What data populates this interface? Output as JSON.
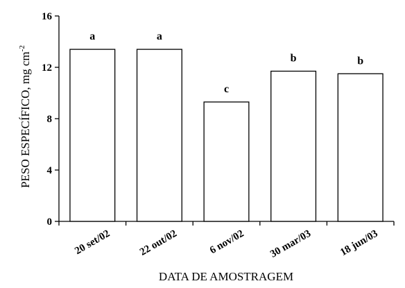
{
  "chart_data": {
    "type": "bar",
    "categories": [
      "20 set/02",
      "22 out/02",
      "6 nov/02",
      "30 mar/03",
      "18 jun/03"
    ],
    "values": [
      13.4,
      13.4,
      9.3,
      11.7,
      11.5
    ],
    "significance_letters": [
      "a",
      "a",
      "c",
      "b",
      "b"
    ],
    "title": "",
    "xlabel": "DATA DE AMOSTRAGEM",
    "ylabel": "PESO ESPECÍFICO, mg cm",
    "ylabel_superscript": "-2",
    "ylim": [
      0,
      16
    ],
    "yticks": [
      0,
      4,
      8,
      12,
      16
    ],
    "grid": false,
    "legend": "none",
    "bar_fill": "#ffffff",
    "bar_stroke": "#000000"
  }
}
